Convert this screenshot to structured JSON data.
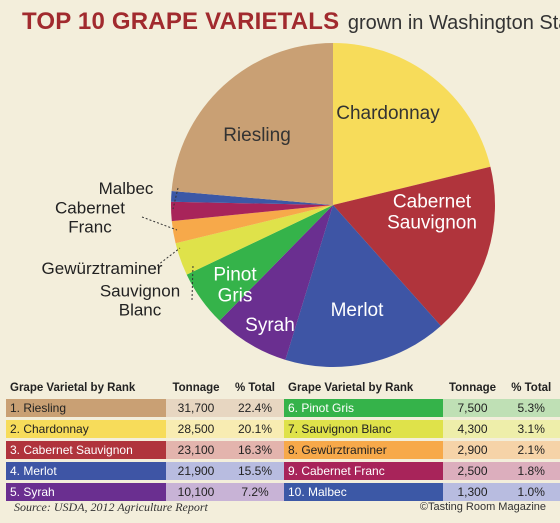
{
  "title": {
    "main": "TOP 10 GRAPE VARIETALS",
    "sub": "grown in Washington State"
  },
  "chart_data": {
    "type": "pie",
    "slices": [
      {
        "label": "Chardonnay",
        "value": 20.1,
        "color": "#f7dc5a",
        "text_color": "#333333"
      },
      {
        "label": "Cabernet Sauvignon",
        "label_lines": [
          "Cabernet",
          "Sauvignon"
        ],
        "value": 16.3,
        "color": "#b0343c",
        "text_color": "#ffffff"
      },
      {
        "label": "Merlot",
        "value": 15.5,
        "color": "#3e55a5",
        "text_color": "#ffffff"
      },
      {
        "label": "Syrah",
        "value": 7.2,
        "color": "#6a2f90",
        "text_color": "#ffffff"
      },
      {
        "label": "Pinot Gris",
        "label_lines": [
          "Pinot",
          "Gris"
        ],
        "value": 5.3,
        "color": "#35b34a",
        "text_color": "#ffffff"
      },
      {
        "label": "Sauvignon Blanc",
        "label_lines": [
          "Sauvignon",
          "Blanc"
        ],
        "value": 3.1,
        "color": "#dfe24a",
        "text_color": "#222222"
      },
      {
        "label": "Gewürztraminer",
        "value": 2.1,
        "color": "#f7a94a",
        "text_color": "#222222"
      },
      {
        "label": "Cabernet Franc",
        "label_lines": [
          "Cabernet",
          "Franc"
        ],
        "value": 1.8,
        "color": "#a8245a",
        "text_color": "#222222"
      },
      {
        "label": "Malbec",
        "value": 1.0,
        "color": "#3c58a6",
        "text_color": "#222222"
      },
      {
        "label": "Riesling",
        "value": 22.4,
        "color": "#c9a074",
        "text_color": "#333333"
      }
    ]
  },
  "table": {
    "headers": {
      "varietal": "Grape Varietal by Rank",
      "tonnage": "Tonnage",
      "pct": "% Total"
    },
    "left": [
      {
        "name": "1. Riesling",
        "tonnage": "31,700",
        "pct": "22.4%",
        "name_bg": "#c9a074",
        "row_bg": "#e7d6c1",
        "dark": false
      },
      {
        "name": "2. Chardonnay",
        "tonnage": "28,500",
        "pct": "20.1%",
        "name_bg": "#f7dc5a",
        "row_bg": "#f8ecb2",
        "dark": false
      },
      {
        "name": "3. Cabernet Sauvignon",
        "tonnage": "23,100",
        "pct": "16.3%",
        "name_bg": "#b0343c",
        "row_bg": "#e3b4ad",
        "dark": true
      },
      {
        "name": "4. Merlot",
        "tonnage": "21,900",
        "pct": "15.5%",
        "name_bg": "#3e55a5",
        "row_bg": "#b8bce0",
        "dark": true
      },
      {
        "name": "5. Syrah",
        "tonnage": "10,100",
        "pct": "7.2%",
        "name_bg": "#6a2f90",
        "row_bg": "#c8b3d6",
        "dark": true
      }
    ],
    "right": [
      {
        "name": "6. Pinot Gris",
        "tonnage": "7,500",
        "pct": "5.3%",
        "name_bg": "#35b34a",
        "row_bg": "#bfe0b5",
        "dark": true
      },
      {
        "name": "7. Sauvignon Blanc",
        "tonnage": "4,300",
        "pct": "3.1%",
        "name_bg": "#dfe24a",
        "row_bg": "#eeeeaa",
        "dark": false
      },
      {
        "name": "8. Gewürztraminer",
        "tonnage": "2,900",
        "pct": "2.1%",
        "name_bg": "#f7a94a",
        "row_bg": "#f6d3a8",
        "dark": false
      },
      {
        "name": "9. Cabernet Franc",
        "tonnage": "2,500",
        "pct": "1.8%",
        "name_bg": "#a8245a",
        "row_bg": "#dcaebd",
        "dark": true
      },
      {
        "name": "10. Malbec",
        "tonnage": "1,300",
        "pct": "1.0%",
        "name_bg": "#3c58a6",
        "row_bg": "#b8bce0",
        "dark": true
      }
    ]
  },
  "footer": {
    "source": "Source: USDA, 2012 Agriculture Report",
    "credit": "©Tasting Room Magazine"
  }
}
